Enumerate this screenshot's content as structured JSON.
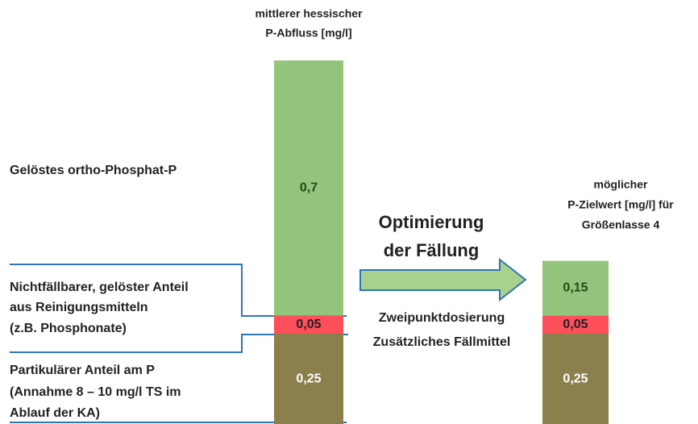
{
  "chart_data": {
    "type": "stacked_bar",
    "categories": [
      [
        "mittlerer hessischer",
        "P-Abfluss [mg/l]"
      ],
      [
        "möglicher",
        "P-Zielwert [mg/l] für",
        "Größenlasse 4"
      ]
    ],
    "series": [
      {
        "name": [
          "Partikulärer Anteil am P",
          "(Annahme 8 – 10 mg/l TS im",
          "Ablauf der KA)"
        ],
        "color": "#8c7f4e",
        "values": [
          0.25,
          0.25
        ],
        "value_labels": [
          "0,25",
          "0,25"
        ]
      },
      {
        "name": [
          "Nichtfällbarer, gelöster Anteil",
          "aus Reinigungsmitteln",
          "(z.B. Phosphonate)"
        ],
        "color": "#ff4f5a",
        "values": [
          0.05,
          0.05
        ],
        "value_labels": [
          "0,05",
          "0,05"
        ]
      },
      {
        "name": [
          "Gelöstes ortho-Phosphat-P"
        ],
        "color": "#93c47d",
        "values": [
          0.7,
          0.15
        ],
        "value_labels": [
          "0,7",
          "0,15"
        ]
      }
    ],
    "annotations": [
      [
        "Optimierung",
        "der Fällung"
      ],
      [
        "Zweipunktdosierung",
        "Zusätzliches Fällmittel"
      ]
    ]
  }
}
